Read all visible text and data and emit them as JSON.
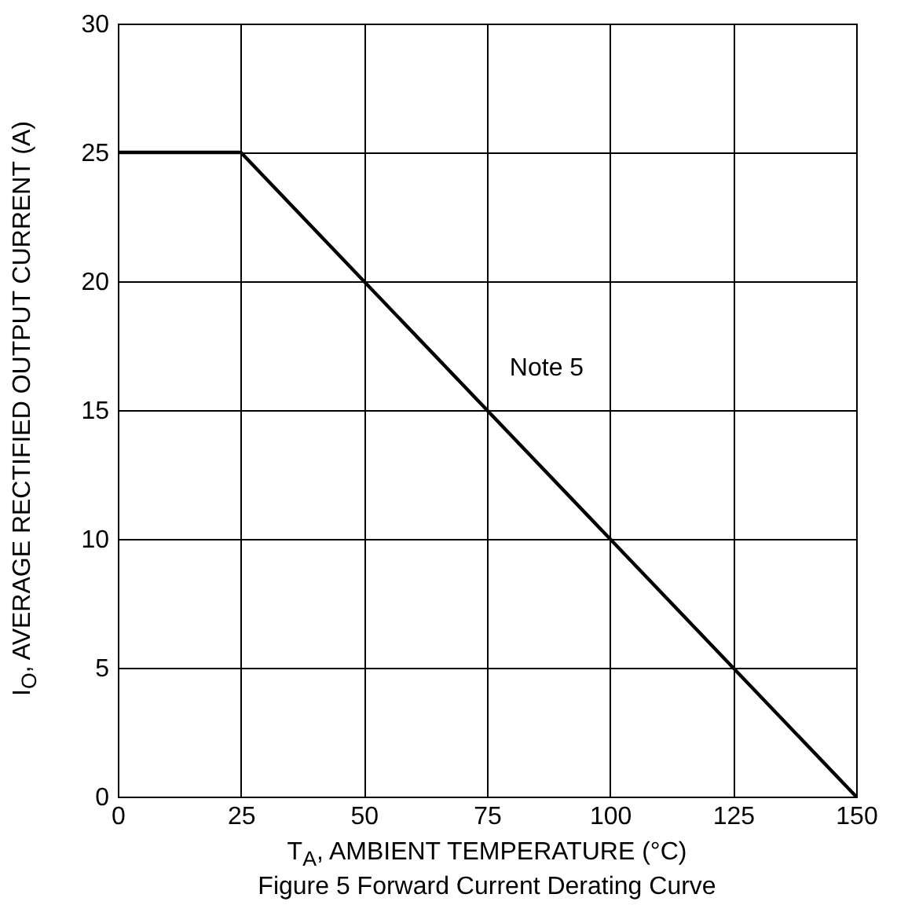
{
  "chart_data": {
    "type": "line",
    "title": "Figure 5 Forward Current Derating Curve",
    "xlabel": "T$_{A}$, AMBIENT TEMPERATURE (°C)",
    "ylabel": "I$_{O}$, AVERAGE RECTIFIED OUTPUT CURRENT (A)",
    "x": [
      0,
      25,
      150
    ],
    "series": [
      {
        "color": "#000000",
        "values": [
          25,
          25,
          0
        ]
      }
    ],
    "xlim": [
      0,
      150
    ],
    "xticks": [
      0,
      25,
      50,
      75,
      100,
      125,
      150
    ],
    "ylim": [
      0,
      30
    ],
    "yticks": [
      0,
      5,
      10,
      15,
      20,
      25,
      30
    ],
    "grid": true,
    "annotations": [
      "Note 5"
    ]
  }
}
